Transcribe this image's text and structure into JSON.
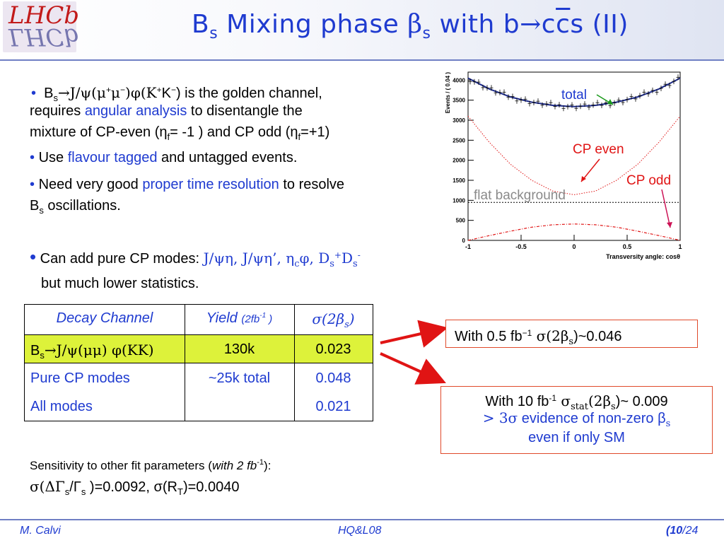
{
  "header": {
    "logo_top": "LHCb",
    "logo_bottom": "ГНСР",
    "title": {
      "part1": "B",
      "sub1": "s",
      "part2": " Mixing phase ",
      "beta": "β",
      "sub2": "s",
      "part3": " with b",
      "arrow": "→",
      "c1": "c",
      "c2": "c",
      "s": "s",
      "part4": "  (II)"
    }
  },
  "bullets": {
    "b1": {
      "l1_a": "B",
      "l1_a_sub": "s",
      "l1_b": "→J/ψ(μ",
      "l1_b_sup": "+",
      "l1_c": "μ",
      "l1_c_sup": "−",
      "l1_d": ")φ(K",
      "l1_d_sup": "+",
      "l1_e": "K",
      "l1_e_sup": "−",
      "l1_f": ") is the golden channel,",
      "l2_a": "requires ",
      "l2_hl": "angular analysis",
      "l2_b": " to disentangle the",
      "l3_a": "mixture of CP-even (η",
      "l3_sub1": "f",
      "l3_b": "= -1 ) and CP odd (η",
      "l3_sub2": "f",
      "l3_c": "=+1)"
    },
    "b2": {
      "a": "Use ",
      "hl": "flavour tagged",
      "b": " and untagged events."
    },
    "b3": {
      "l1_a": "Need very good ",
      "l1_hl": "proper time resolution",
      "l1_b": " to resolve",
      "l2_a": "B",
      "l2_sub": "s",
      "l2_b": " oscillations."
    },
    "b4": {
      "a": "Can add pure CP modes: ",
      "modes": "J/ψη, J/ψη’, η",
      "modes_sub": "c",
      "modes2": "φ, D",
      "modes2_sub": "s",
      "modes2_sup": "+",
      "modes3": "D",
      "modes3_sub": "s",
      "modes3_sup": "-",
      "l2": "but much lower statistics."
    }
  },
  "table": {
    "headers": {
      "channel": "Decay Channel",
      "yield": "Yield",
      "yield_note": "(2fb",
      "yield_note_sup": "-1",
      "yield_note_end": " )",
      "sigma": "σ(2β",
      "sigma_sub": "s",
      "sigma_end": ")"
    },
    "rows": [
      {
        "channel_a": "B",
        "channel_sub": "s",
        "channel_b": "→J/ψ(μμ) φ(KK)",
        "yield": "130k",
        "sigma": "0.023"
      },
      {
        "channel": "Pure CP modes",
        "yield": "~25k total",
        "sigma": "0.048"
      },
      {
        "channel": "All modes",
        "yield": "",
        "sigma": "0.021"
      }
    ]
  },
  "box1": {
    "a": "With 0.5 fb",
    "sup": "−1",
    "b": "  σ(2β",
    "sub": "s",
    "c": ")~0.046"
  },
  "box2": {
    "l1_a": "With 10 fb",
    "l1_sup": "-1",
    "l1_b": "  σ",
    "l1_sub": "stat",
    "l1_c": "(2β",
    "l1_sub2": "s",
    "l1_d": ")~ 0.009",
    "l2_a": "> 3σ",
    "l2_b": " evidence of non-zero β",
    "l2_sub": "s",
    "l3": "even if only SM"
  },
  "sensitivity": {
    "l1_a": "Sensitivity to other fit parameters (",
    "l1_it": "with 2 fb",
    "l1_sup": "-1",
    "l1_b": "):",
    "l2_a": "σ(ΔΓ",
    "l2_sub1": "s",
    "l2_b": "/Γ",
    "l2_sub2": "s",
    "l2_c": "  )=0.0092,  σ(R",
    "l2_sub3": "T",
    "l2_d": ")=0.0040"
  },
  "plot_labels": {
    "total": "total",
    "cp_even": "CP even",
    "cp_odd": "CP odd",
    "flat": "flat background"
  },
  "footer": {
    "author": "M. Calvi",
    "conference": "HQ&L08",
    "page_open": "(",
    "page": "10",
    "page_sep": "/",
    "total": "24"
  },
  "colors": {
    "title": "#1f3bd0",
    "highlight": "#ddf23a",
    "accent_red": "#e01414",
    "plot_total": "#1e2c8c",
    "plot_cp": "#e01414"
  },
  "chart_data": {
    "type": "line",
    "xlabel": "Transversity angle: cosθ",
    "ylabel": "Events / ( 0.04 )",
    "xlim": [
      -1,
      1
    ],
    "ylim": [
      0,
      4200
    ],
    "x_ticks": [
      "-1",
      "-0.5",
      "0",
      "0.5",
      "1"
    ],
    "y_ticks": [
      "0",
      "500",
      "1000",
      "1500",
      "2000",
      "2500",
      "3000",
      "3500",
      "4000"
    ],
    "x": [
      -1,
      -0.8,
      -0.6,
      -0.4,
      -0.2,
      0,
      0.2,
      0.4,
      0.6,
      0.8,
      1
    ],
    "series": [
      {
        "name": "total",
        "values": [
          4050,
          3780,
          3580,
          3450,
          3370,
          3340,
          3370,
          3450,
          3580,
          3780,
          4050
        ]
      },
      {
        "name": "CP even",
        "values": [
          3100,
          2450,
          1900,
          1500,
          1230,
          1140,
          1230,
          1500,
          1900,
          2450,
          3100
        ]
      },
      {
        "name": "CP odd",
        "values": [
          0,
          120,
          230,
          330,
          390,
          410,
          390,
          330,
          230,
          120,
          0
        ]
      },
      {
        "name": "flat background",
        "values": [
          950,
          950,
          950,
          950,
          950,
          950,
          950,
          950,
          950,
          950,
          950
        ]
      }
    ],
    "grid": false,
    "legend": "annotations"
  }
}
